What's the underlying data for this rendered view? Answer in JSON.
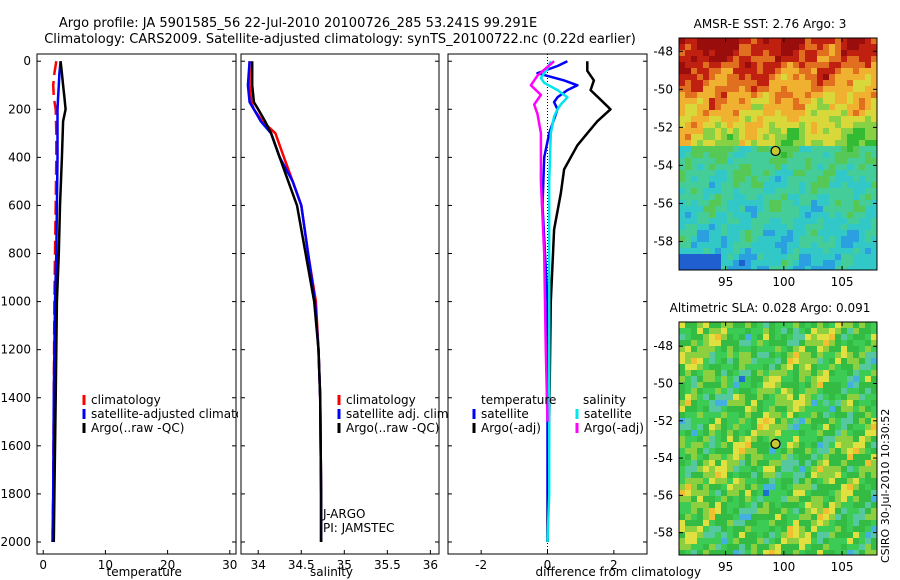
{
  "title_line1": "Argo profile: JA 5901585_56 22-Jul-2010 20100726_285 53.241S 99.291E",
  "title_line2": "Climatology: CARS2009. Satellite-adjusted climatology: synTS_20100722.nc (0.22d earlier)",
  "side_label": "CSIRO 30-Jul-2010 10:30:52",
  "colors": {
    "climatology": "#ff0000",
    "satellite": "#0000ff",
    "argo": "#000000",
    "sal_satellite": "#00e5ee",
    "sal_argo": "#ff00ff"
  },
  "chart_data": [
    {
      "type": "line",
      "id": "temperature",
      "xlabel": "temperature",
      "ylabel": "",
      "xlim": [
        -1,
        31
      ],
      "ylim": [
        2050,
        -30
      ],
      "xticks": [
        0,
        10,
        20,
        30
      ],
      "xtick_labels": [
        "0",
        "10",
        "20",
        "30"
      ],
      "yticks": [
        0,
        200,
        400,
        600,
        800,
        1000,
        1200,
        1400,
        1600,
        1800,
        2000
      ],
      "ytick_labels": [
        "0",
        "200",
        "400",
        "600",
        "800",
        "1000",
        "1200",
        "1400",
        "1600",
        "1800",
        "2000"
      ],
      "legend": [
        "climatology",
        "satellite-adjusted climatolog",
        "Argo(..raw -QC)"
      ],
      "series": [
        {
          "name": "climatology",
          "color": "#ff0000",
          "dashed": true,
          "x": [
            2.1,
            1.8,
            1.6,
            1.7,
            2.0,
            2.1,
            2.1,
            2.0,
            1.9,
            1.8,
            1.7,
            1.6,
            1.5
          ],
          "y": [
            0,
            50,
            100,
            150,
            200,
            300,
            400,
            600,
            800,
            1000,
            1400,
            1800,
            2000
          ]
        },
        {
          "name": "satellite",
          "color": "#0000ff",
          "x": [
            2.8,
            2.6,
            2.5,
            2.4,
            2.3,
            2.3,
            2.3,
            2.2,
            2.1,
            1.9,
            1.7,
            1.6,
            1.5
          ],
          "y": [
            0,
            50,
            100,
            150,
            200,
            300,
            400,
            600,
            800,
            1000,
            1400,
            1800,
            2000
          ]
        },
        {
          "name": "argo",
          "color": "#000000",
          "x": [
            2.8,
            3.0,
            3.2,
            3.4,
            3.6,
            3.2,
            3.0,
            2.7,
            2.5,
            2.2,
            2.0,
            1.8,
            1.7
          ],
          "y": [
            0,
            50,
            100,
            150,
            200,
            250,
            400,
            600,
            800,
            1000,
            1400,
            1800,
            2000
          ]
        }
      ]
    },
    {
      "type": "line",
      "id": "salinity",
      "xlabel": "salinity",
      "xlim": [
        33.8,
        36.1
      ],
      "ylim": [
        2050,
        -30
      ],
      "xticks": [
        34,
        34.5,
        35,
        35.5,
        36
      ],
      "xtick_labels": [
        "34",
        "34.5",
        "35",
        "35.5",
        "36"
      ],
      "legend": [
        "climatology",
        "satellite adj. clim.",
        "Argo(..raw -QC)"
      ],
      "annotations": [
        "J-ARGO",
        "PI: JAMSTEC"
      ],
      "series": [
        {
          "name": "climatology",
          "color": "#ff0000",
          "x": [
            33.9,
            33.9,
            33.92,
            33.95,
            34.05,
            34.2,
            34.3,
            34.4,
            34.5,
            34.58,
            34.67,
            34.7,
            34.72,
            34.73,
            34.73
          ],
          "y": [
            0,
            100,
            170,
            200,
            250,
            300,
            400,
            500,
            600,
            800,
            1000,
            1200,
            1400,
            1800,
            2000
          ]
        },
        {
          "name": "satellite",
          "color": "#0000ff",
          "x": [
            33.9,
            33.88,
            33.9,
            33.95,
            34.03,
            34.15,
            34.25,
            34.4,
            34.5,
            34.58,
            34.66,
            34.7,
            34.72,
            34.73,
            34.73
          ],
          "y": [
            0,
            100,
            170,
            200,
            250,
            300,
            400,
            500,
            600,
            800,
            1000,
            1200,
            1400,
            1800,
            2000
          ]
        },
        {
          "name": "argo",
          "color": "#000000",
          "x": [
            33.93,
            33.93,
            33.95,
            34.0,
            34.08,
            34.15,
            34.25,
            34.35,
            34.45,
            34.55,
            34.65,
            34.7,
            34.72,
            34.73,
            34.73
          ],
          "y": [
            0,
            100,
            170,
            200,
            250,
            300,
            400,
            500,
            600,
            800,
            1000,
            1200,
            1400,
            1800,
            2000
          ]
        }
      ]
    },
    {
      "type": "line",
      "id": "difference",
      "xlabel": "difference from climatology",
      "xlim": [
        -3,
        3
      ],
      "ylim": [
        2050,
        -30
      ],
      "xticks": [
        -2,
        0,
        2
      ],
      "xtick_labels": [
        "-2",
        "0",
        "2"
      ],
      "legend_headers": [
        "temperature",
        "salinity"
      ],
      "legend": [
        "satellite",
        "Argo(-adj)",
        "satellite",
        "Argo(-adj)"
      ],
      "series": [
        {
          "name": "temperature satellite",
          "color": "#0000ff",
          "x": [
            0.6,
            0.3,
            -0.3,
            0.5,
            0.9,
            0.6,
            0.3,
            0.2,
            0.3,
            0.05,
            -0.1,
            -0.15,
            0.0,
            0.0,
            0.0
          ],
          "y": [
            0,
            20,
            50,
            80,
            100,
            120,
            150,
            170,
            200,
            300,
            400,
            600,
            1000,
            1500,
            2000
          ]
        },
        {
          "name": "temperature Argo(-adj)",
          "color": "#000000",
          "x": [
            1.2,
            1.2,
            1.4,
            1.3,
            1.6,
            1.9,
            1.5,
            1.2,
            0.9,
            0.5,
            0.4,
            0.2,
            0.1,
            0.05,
            0.0
          ],
          "y": [
            0,
            40,
            80,
            120,
            160,
            200,
            250,
            300,
            350,
            450,
            550,
            700,
            1000,
            1500,
            2000
          ]
        },
        {
          "name": "salinity satellite",
          "color": "#00e5ee",
          "x": [
            0.1,
            0.0,
            -0.2,
            -0.1,
            0.3,
            0.6,
            0.4,
            0.3,
            0.2,
            0.1,
            0.05,
            0.05,
            0.05,
            0.05,
            0.0
          ],
          "y": [
            0,
            30,
            70,
            90,
            120,
            150,
            180,
            200,
            230,
            300,
            500,
            1000,
            1400,
            1800,
            2000
          ]
        },
        {
          "name": "salinity Argo(-adj)",
          "color": "#ff00ff",
          "x": [
            0.2,
            -0.3,
            -0.5,
            -0.2,
            -0.4,
            -0.3,
            -0.2,
            -0.2,
            -0.1,
            -0.05,
            0.0
          ],
          "y": [
            0,
            60,
            100,
            140,
            180,
            220,
            300,
            500,
            800,
            1200,
            1500
          ]
        }
      ]
    },
    {
      "type": "heatmap",
      "id": "sst-map",
      "title": "AMSR-E SST: 2.76 Argo: 3",
      "xlim": [
        91,
        108
      ],
      "ylim": [
        -59.5,
        -47.3
      ],
      "xticks": [
        95,
        100,
        105
      ],
      "xtick_labels": [
        "95",
        "100",
        "105"
      ],
      "yticks": [
        -48,
        -50,
        -52,
        -54,
        -56,
        -58
      ],
      "ytick_labels": [
        "-48",
        "-50",
        "-52",
        "-54",
        "-56",
        "-58"
      ],
      "marker": {
        "lon": 99.29,
        "lat": -53.24
      }
    },
    {
      "type": "heatmap",
      "id": "sla-map",
      "title": "Altimetric SLA: 0.028 Argo: 0.091",
      "xlim": [
        91,
        108
      ],
      "ylim": [
        -59.2,
        -46.7
      ],
      "xticks": [
        95,
        100,
        105
      ],
      "xtick_labels": [
        "95",
        "100",
        "105"
      ],
      "yticks": [
        -48,
        -50,
        -52,
        -54,
        -56,
        -58
      ],
      "ytick_labels": [
        "-48",
        "-50",
        "-52",
        "-54",
        "-56",
        "-58"
      ],
      "marker": {
        "lon": 99.29,
        "lat": -53.24
      }
    }
  ]
}
